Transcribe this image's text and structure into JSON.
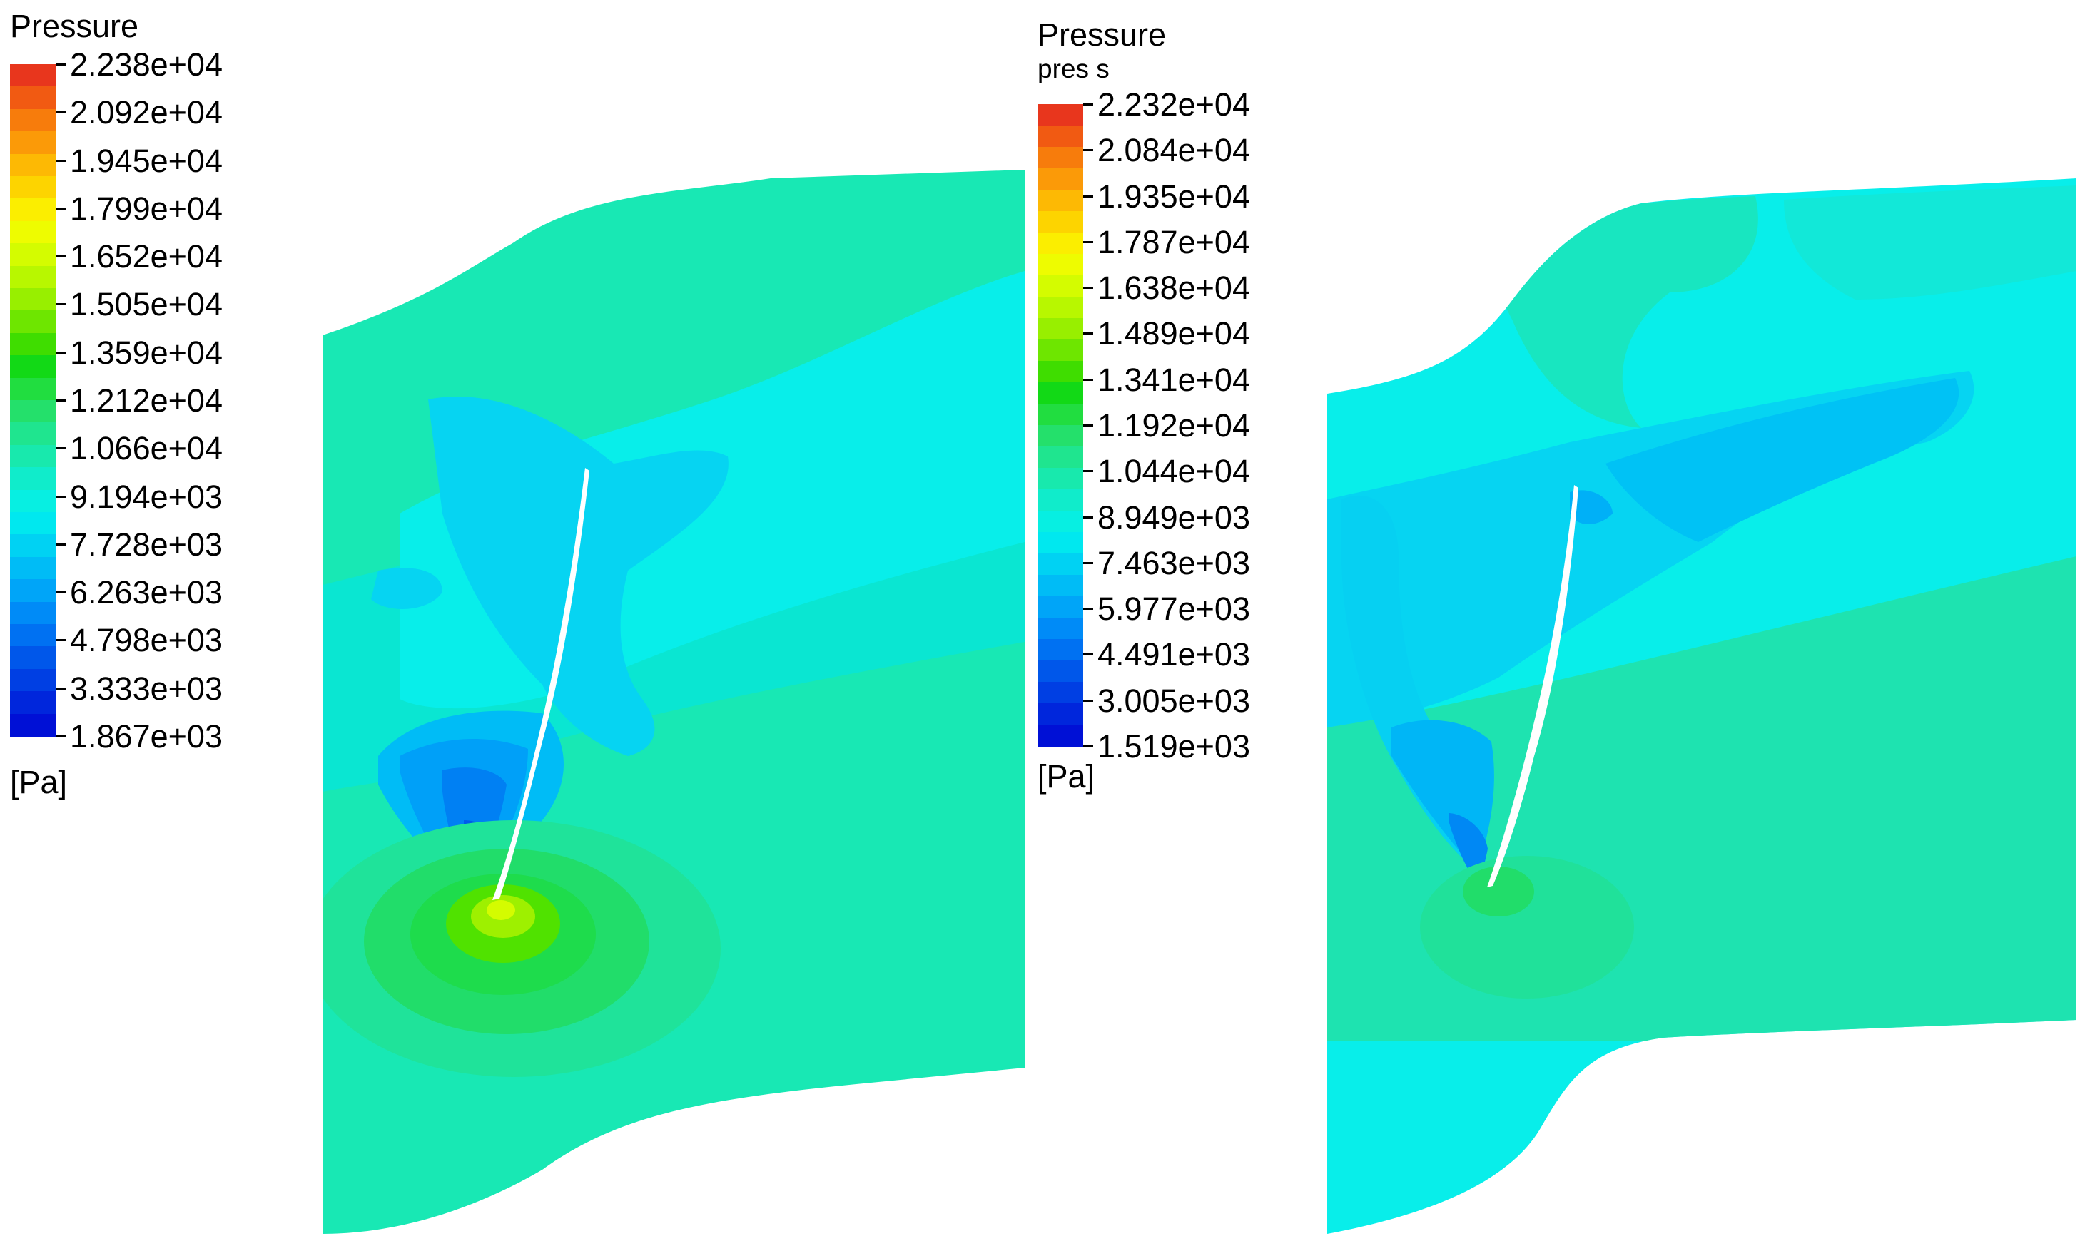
{
  "legends": [
    {
      "title": "Pressure",
      "subtitle": "",
      "units": "[Pa]",
      "tick_labels": [
        "2.238e+04",
        "2.092e+04",
        "1.945e+04",
        "1.799e+04",
        "1.652e+04",
        "1.505e+04",
        "1.359e+04",
        "1.212e+04",
        "1.066e+04",
        "9.194e+03",
        "7.728e+03",
        "6.263e+03",
        "4.798e+03",
        "3.333e+03",
        "1.867e+03"
      ]
    },
    {
      "title": "Pressure",
      "subtitle": "pres s",
      "units": "[Pa]",
      "tick_labels": [
        "2.232e+04",
        "2.084e+04",
        "1.935e+04",
        "1.787e+04",
        "1.638e+04",
        "1.489e+04",
        "1.341e+04",
        "1.192e+04",
        "1.044e+04",
        "8.949e+03",
        "7.463e+03",
        "5.977e+03",
        "4.491e+03",
        "3.005e+03",
        "1.519e+03"
      ]
    }
  ],
  "colormap": [
    "#e8361d",
    "#f15a12",
    "#f77c0c",
    "#fb9a08",
    "#fdb904",
    "#fdd400",
    "#fbee00",
    "#eefc00",
    "#d4fc00",
    "#b8f700",
    "#98ef00",
    "#6ee600",
    "#3fdd00",
    "#12d916",
    "#21dd40",
    "#24e06b",
    "#1fe58f",
    "#18e9ad",
    "#10eccb",
    "#07efe2",
    "#00e8ef",
    "#00d2f3",
    "#00bcf6",
    "#00a5f8",
    "#008bf7",
    "#0071f2",
    "#0057ea",
    "#003fe3",
    "#0026dc",
    "#0010d6"
  ],
  "colors": {
    "background_field": "#18e8b4",
    "field_teal": "#1ee59a",
    "field_cyan": "#08eeea",
    "field_lightblue": "#06d4f2",
    "field_blue": "#00a8f6",
    "field_deepblue": "#0072ef",
    "field_green": "#1edc4c",
    "field_yellowgreen": "#9ef000",
    "blade": "#ffffff"
  }
}
